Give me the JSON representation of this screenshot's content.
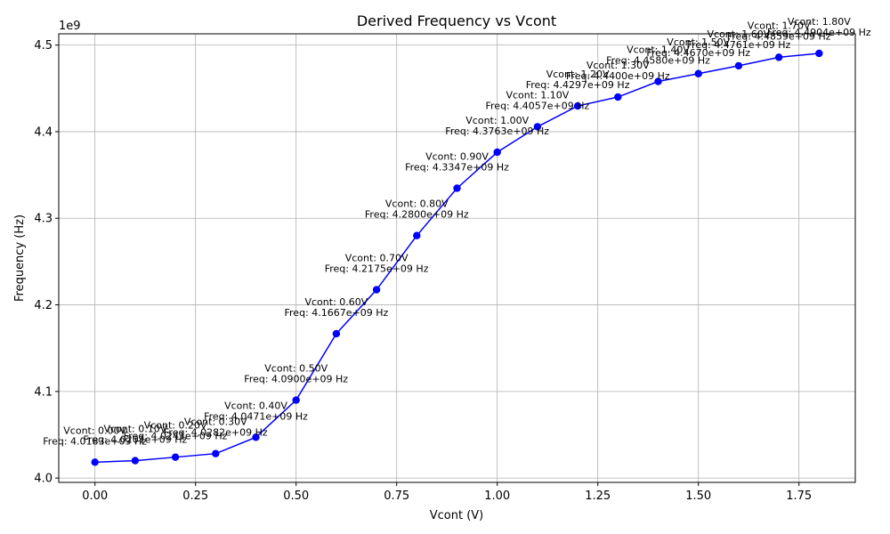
{
  "chart_data": {
    "type": "line",
    "title": "Derived Frequency vs Vcont",
    "xlabel": "Vcont (V)",
    "ylabel": "Frequency (Hz)",
    "y_multiplier_label": "1e9",
    "xlim": [
      -0.09,
      1.89
    ],
    "ylim": [
      3.995,
      4.513
    ],
    "x_ticks": [
      0.0,
      0.25,
      0.5,
      0.75,
      1.0,
      1.25,
      1.5,
      1.75
    ],
    "x_tick_labels": [
      "0.00",
      "0.25",
      "0.50",
      "0.75",
      "1.00",
      "1.25",
      "1.50",
      "1.75"
    ],
    "y_ticks": [
      4.0,
      4.1,
      4.2,
      4.3,
      4.4,
      4.5
    ],
    "y_tick_labels": [
      "4.0",
      "4.1",
      "4.2",
      "4.3",
      "4.4",
      "4.5"
    ],
    "grid": true,
    "line_color": "#0000ff",
    "marker": "circle",
    "x": [
      0.0,
      0.1,
      0.2,
      0.3,
      0.4,
      0.5,
      0.6,
      0.7,
      0.8,
      0.9,
      1.0,
      1.1,
      1.2,
      1.3,
      1.4,
      1.5,
      1.6,
      1.7,
      1.8
    ],
    "y": [
      4.0183,
      4.0201,
      4.0241,
      4.0282,
      4.0471,
      4.09,
      4.1667,
      4.2175,
      4.28,
      4.3347,
      4.3763,
      4.4057,
      4.4297,
      4.44,
      4.458,
      4.467,
      4.4761,
      4.4859,
      4.4904
    ],
    "annotations": [
      [
        "Vcont: 0.00V",
        "Freq: 4.0183e+09 Hz"
      ],
      [
        "Vcont: 0.10V",
        "Freq: 4.0201e+09 Hz"
      ],
      [
        "Vcont: 0.20V",
        "Freq: 4.0241e+09 Hz"
      ],
      [
        "Vcont: 0.30V",
        "Freq: 4.0282e+09 Hz"
      ],
      [
        "Vcont: 0.40V",
        "Freq: 4.0471e+09 Hz"
      ],
      [
        "Vcont: 0.50V",
        "Freq: 4.0900e+09 Hz"
      ],
      [
        "Vcont: 0.60V",
        "Freq: 4.1667e+09 Hz"
      ],
      [
        "Vcont: 0.70V",
        "Freq: 4.2175e+09 Hz"
      ],
      [
        "Vcont: 0.80V",
        "Freq: 4.2800e+09 Hz"
      ],
      [
        "Vcont: 0.90V",
        "Freq: 4.3347e+09 Hz"
      ],
      [
        "Vcont: 1.00V",
        "Freq: 4.3763e+09 Hz"
      ],
      [
        "Vcont: 1.10V",
        "Freq: 4.4057e+09 Hz"
      ],
      [
        "Vcont: 1.20V",
        "Freq: 4.4297e+09 Hz"
      ],
      [
        "Vcont: 1.30V",
        "Freq: 4.4400e+09 Hz"
      ],
      [
        "Vcont: 1.40V",
        "Freq: 4.4580e+09 Hz"
      ],
      [
        "Vcont: 1.50V",
        "Freq: 4.4670e+09 Hz"
      ],
      [
        "Vcont: 1.60V",
        "Freq: 4.4761e+09 Hz"
      ],
      [
        "Vcont: 1.70V",
        "Freq: 4.4859e+09 Hz"
      ],
      [
        "Vcont: 1.80V",
        "Freq: 4.4904e+09 Hz"
      ]
    ]
  }
}
